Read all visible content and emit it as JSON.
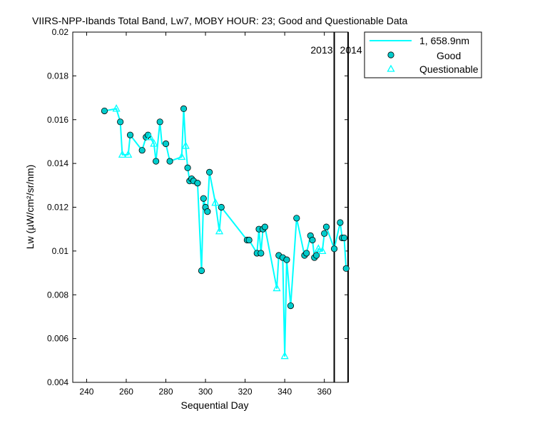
{
  "chart_data": {
    "type": "line",
    "title": "VIIRS-NPP-Ibands Total Band,  Lw7, MOBY HOUR: 23;  Good and Questionable Data",
    "xlabel": "Sequential Day",
    "ylabel": "Lw (µW/cm²/sr/nm)",
    "xlim": [
      233,
      372
    ],
    "ylim": [
      0.004,
      0.02
    ],
    "x_ticks": [
      240,
      260,
      280,
      300,
      320,
      340,
      360
    ],
    "y_ticks": [
      0.004,
      0.006,
      0.008,
      0.01,
      0.012,
      0.014,
      0.016,
      0.018,
      0.02
    ],
    "x_tick_labels": [
      "240",
      "260",
      "280",
      "300",
      "320",
      "340",
      "360"
    ],
    "y_tick_labels": [
      "0.004",
      "0.006",
      "0.008",
      "0.01",
      "0.012",
      "0.014",
      "0.016",
      "0.018",
      "0.02"
    ],
    "grid": false,
    "legend_position": "top-right outside",
    "series": [
      {
        "name": "1, 658.9nm",
        "role": "line",
        "color": "#00ffff",
        "x": [
          249,
          255,
          257,
          258,
          261,
          262,
          268,
          270,
          271,
          272,
          274,
          275,
          277,
          278,
          280,
          282,
          288,
          289,
          290,
          291,
          292,
          293,
          294,
          296,
          298,
          299,
          300,
          301,
          302,
          305,
          307,
          308,
          321,
          322,
          326,
          327,
          328,
          329,
          330,
          336,
          337,
          339,
          340,
          341,
          343,
          346,
          350,
          351,
          353,
          354,
          355,
          356,
          357,
          359,
          360,
          361,
          365,
          368,
          369,
          370,
          371
        ],
        "y": [
          0.0164,
          0.0165,
          0.0159,
          0.0144,
          0.0144,
          0.0153,
          0.0146,
          0.0152,
          0.0153,
          0.0152,
          0.0149,
          0.0141,
          0.0159,
          0.0149,
          0.0149,
          0.0141,
          0.0143,
          0.0165,
          0.0148,
          0.0138,
          0.0132,
          0.0133,
          0.0132,
          0.0131,
          0.0091,
          0.0124,
          0.012,
          0.0118,
          0.0136,
          0.0122,
          0.0109,
          0.012,
          0.0105,
          0.0105,
          0.0099,
          0.011,
          0.0099,
          0.011,
          0.0111,
          0.0083,
          0.0098,
          0.0097,
          0.0052,
          0.0096,
          0.0075,
          0.0115,
          0.0098,
          0.0099,
          0.0107,
          0.0105,
          0.0097,
          0.0098,
          0.0101,
          0.01,
          0.0108,
          0.0111,
          0.0101,
          0.0113,
          0.0106,
          0.0106,
          0.0092
        ]
      },
      {
        "name": "Good",
        "role": "circle-markers",
        "color": "#00cccc",
        "x": [
          249,
          257,
          262,
          268,
          270,
          271,
          275,
          277,
          280,
          282,
          289,
          291,
          292,
          293,
          294,
          296,
          298,
          299,
          300,
          301,
          302,
          308,
          321,
          322,
          326,
          327,
          328,
          329,
          330,
          337,
          339,
          341,
          343,
          346,
          350,
          351,
          353,
          354,
          355,
          356,
          360,
          361,
          365,
          368,
          369,
          370,
          371
        ],
        "y": [
          0.0164,
          0.0159,
          0.0153,
          0.0146,
          0.0152,
          0.0153,
          0.0141,
          0.0159,
          0.0149,
          0.0141,
          0.0165,
          0.0138,
          0.0132,
          0.0133,
          0.0132,
          0.0131,
          0.0091,
          0.0124,
          0.012,
          0.0118,
          0.0136,
          0.012,
          0.0105,
          0.0105,
          0.0099,
          0.011,
          0.0099,
          0.011,
          0.0111,
          0.0098,
          0.0097,
          0.0096,
          0.0075,
          0.0115,
          0.0098,
          0.0099,
          0.0107,
          0.0105,
          0.0097,
          0.0098,
          0.0108,
          0.0111,
          0.0101,
          0.0113,
          0.0106,
          0.0106,
          0.0092
        ]
      },
      {
        "name": "Questionable",
        "role": "triangle-markers",
        "color": "#00ffff",
        "x": [
          255,
          258,
          261,
          272,
          274,
          288,
          290,
          305,
          307,
          336,
          340,
          357,
          359
        ],
        "y": [
          0.0165,
          0.0144,
          0.0144,
          0.0152,
          0.0149,
          0.0143,
          0.0148,
          0.0122,
          0.0109,
          0.0083,
          0.0052,
          0.0101,
          0.01
        ]
      }
    ],
    "year_boundaries": [
      {
        "x": 365,
        "label_left": "2013",
        "label_right": "2014"
      },
      {
        "x": 372
      }
    ]
  }
}
